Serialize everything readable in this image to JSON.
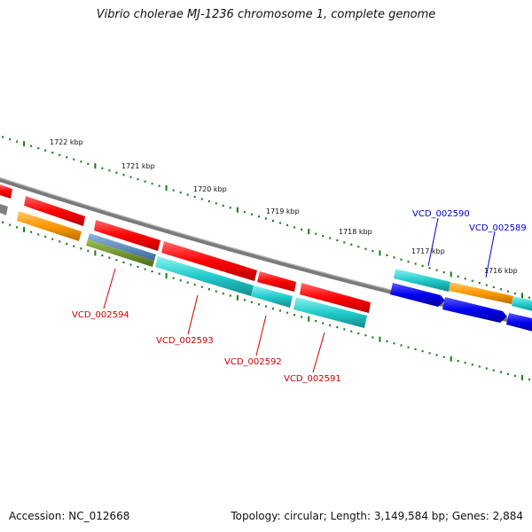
{
  "title": "Vibrio cholerae MJ-1236 chromosome 1, complete genome",
  "footer": {
    "accession": "Accession: NC_012668",
    "topology": "Topology: circular; Length: 3,149,584 bp; Genes: 2,884"
  },
  "axis": {
    "tick_labels": [
      "1722 kbp",
      "1721 kbp",
      "1720 kbp",
      "1719 kbp",
      "1718 kbp",
      "1717 kbp",
      "1716 kbp"
    ]
  },
  "genes": {
    "reverse_strand_labels": [
      "VCD_002594",
      "VCD_002593",
      "VCD_002592",
      "VCD_002591"
    ],
    "forward_strand_labels": [
      "VCD_002590",
      "VCD_002589"
    ]
  },
  "colors": {
    "backbone": "#808080",
    "tick": "#1a7a1a",
    "red_feature": "#ff0000",
    "cyan_feature": "#22cccc",
    "blue_feature": "#0000ee",
    "orange_feature": "#ff9900",
    "green_feature": "#6b8e23",
    "steel_feature": "#4a7fb5",
    "reverse_label": "#cc0000",
    "forward_label": "#0000cc"
  }
}
